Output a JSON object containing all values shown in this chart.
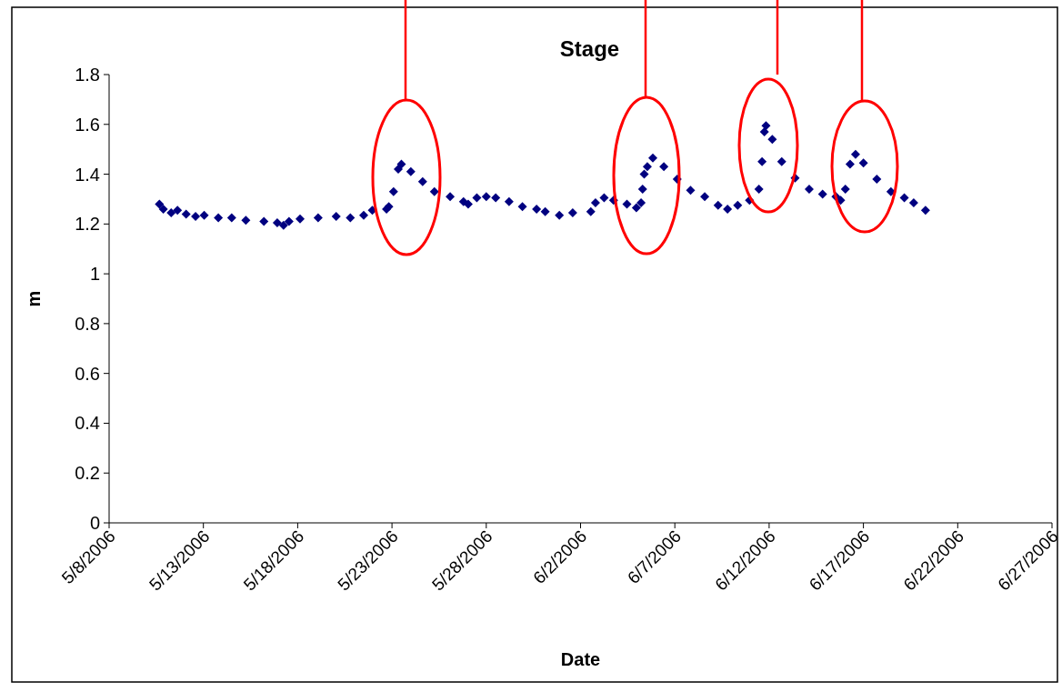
{
  "chart_data": {
    "type": "scatter",
    "title": "Stage",
    "xlabel": "Date",
    "ylabel": "m",
    "marker": "diamond",
    "grid": false,
    "xlim": [
      "2006-05-08",
      "2006-06-27"
    ],
    "xticks": [
      {
        "value": "2006-05-08",
        "label": "5/8/2006"
      },
      {
        "value": "2006-05-13",
        "label": "5/13/2006"
      },
      {
        "value": "2006-05-18",
        "label": "5/18/2006"
      },
      {
        "value": "2006-05-23",
        "label": "5/23/2006"
      },
      {
        "value": "2006-05-28",
        "label": "5/28/2006"
      },
      {
        "value": "2006-06-02",
        "label": "6/2/2006"
      },
      {
        "value": "2006-06-07",
        "label": "6/7/2006"
      },
      {
        "value": "2006-06-12",
        "label": "6/12/2006"
      },
      {
        "value": "2006-06-17",
        "label": "6/17/2006"
      },
      {
        "value": "2006-06-22",
        "label": "6/22/2006"
      },
      {
        "value": "2006-06-27",
        "label": "6/27/2006"
      }
    ],
    "ylim": [
      0,
      1.8
    ],
    "yticks": [
      0,
      0.2,
      0.4,
      0.6,
      0.8,
      1,
      1.2,
      1.4,
      1.6,
      1.8
    ],
    "series": [
      {
        "color": "#000080",
        "x": [
          "2006-05-10T16:00",
          "2006-05-10T21:00",
          "2006-05-11T07:00",
          "2006-05-11T15:00",
          "2006-05-12T02:00",
          "2006-05-12T14:00",
          "2006-05-13T01:00",
          "2006-05-13T19:00",
          "2006-05-14T12:00",
          "2006-05-15T06:00",
          "2006-05-16T05:00",
          "2006-05-16T22:00",
          "2006-05-17T06:00",
          "2006-05-17T13:00",
          "2006-05-18T03:00",
          "2006-05-19T02:00",
          "2006-05-20T01:00",
          "2006-05-20T19:00",
          "2006-05-21T12:00",
          "2006-05-21T23:00",
          "2006-05-22T17:00",
          "2006-05-22T20:00",
          "2006-05-23T02:00",
          "2006-05-23T08:00",
          "2006-05-23T12:00",
          "2006-05-24T00:00",
          "2006-05-24T15:00",
          "2006-05-25T06:00",
          "2006-05-26T02:00",
          "2006-05-26T19:00",
          "2006-05-27T01:00",
          "2006-05-27T12:00",
          "2006-05-28T00:00",
          "2006-05-28T12:00",
          "2006-05-29T05:00",
          "2006-05-29T22:00",
          "2006-05-30T16:00",
          "2006-05-31T03:00",
          "2006-05-31T21:00",
          "2006-06-01T14:00",
          "2006-06-02T13:00",
          "2006-06-02T19:00",
          "2006-06-03T06:00",
          "2006-06-03T18:00",
          "2006-06-04T11:00",
          "2006-06-04T23:00",
          "2006-06-05T05:00",
          "2006-06-05T07:00",
          "2006-06-05T09:00",
          "2006-06-05T13:00",
          "2006-06-05T20:00",
          "2006-06-06T10:00",
          "2006-06-07T03:00",
          "2006-06-07T20:00",
          "2006-06-08T14:00",
          "2006-06-09T07:00",
          "2006-06-09T19:00",
          "2006-06-10T08:00",
          "2006-06-10T23:00",
          "2006-06-11T11:00",
          "2006-06-11T15:00",
          "2006-06-11T18:00",
          "2006-06-11T20:00",
          "2006-06-12T04:00",
          "2006-06-12T16:00",
          "2006-06-13T09:00",
          "2006-06-14T03:00",
          "2006-06-14T20:00",
          "2006-06-15T13:00",
          "2006-06-15T19:00",
          "2006-06-16T01:00",
          "2006-06-16T07:00",
          "2006-06-16T14:00",
          "2006-06-17T00:00",
          "2006-06-17T17:00",
          "2006-06-18T11:00",
          "2006-06-19T04:00",
          "2006-06-19T16:00",
          "2006-06-20T07:00"
        ],
        "values": [
          1.28,
          1.26,
          1.245,
          1.255,
          1.24,
          1.23,
          1.235,
          1.225,
          1.225,
          1.215,
          1.21,
          1.205,
          1.195,
          1.21,
          1.22,
          1.225,
          1.23,
          1.225,
          1.235,
          1.255,
          1.26,
          1.27,
          1.33,
          1.42,
          1.44,
          1.41,
          1.37,
          1.33,
          1.31,
          1.29,
          1.28,
          1.305,
          1.31,
          1.305,
          1.29,
          1.27,
          1.26,
          1.25,
          1.235,
          1.245,
          1.25,
          1.285,
          1.305,
          1.295,
          1.28,
          1.265,
          1.285,
          1.34,
          1.4,
          1.43,
          1.465,
          1.43,
          1.38,
          1.335,
          1.31,
          1.275,
          1.26,
          1.275,
          1.295,
          1.34,
          1.45,
          1.57,
          1.595,
          1.54,
          1.45,
          1.385,
          1.34,
          1.32,
          1.31,
          1.295,
          1.34,
          1.44,
          1.48,
          1.445,
          1.38,
          1.33,
          1.305,
          1.285,
          1.255
        ]
      }
    ]
  }
}
